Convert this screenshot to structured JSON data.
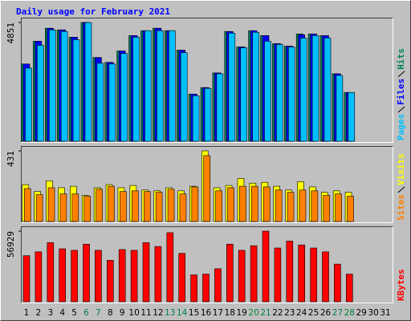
{
  "chart_data": [
    {
      "type": "bar",
      "title": "Daily usage for February 2021",
      "ylim": [
        0,
        4851
      ],
      "yticks": [
        4851
      ],
      "series": [
        {
          "name": "Hits",
          "color": "#00805c",
          "values": [
            3154,
            4084,
            4615,
            4549,
            4250,
            4851,
            3420,
            3221,
            3686,
            4317,
            4516,
            4615,
            4516,
            3719,
            1926,
            2191,
            2789,
            4483,
            3852,
            4516,
            4317,
            3985,
            3885,
            4383,
            4383,
            4317,
            2756,
            1992,
            null,
            null,
            null
          ]
        },
        {
          "name": "Files",
          "color": "#0000ff",
          "values": [
            3154,
            4084,
            4615,
            4549,
            4250,
            4851,
            3420,
            3221,
            3686,
            4317,
            4516,
            4615,
            4516,
            3719,
            1926,
            2191,
            2789,
            4483,
            3852,
            4516,
            4317,
            3985,
            3885,
            4350,
            4383,
            4317,
            2756,
            1992,
            null,
            null,
            null
          ]
        },
        {
          "name": "Pages",
          "color": "#00c0ff",
          "values": [
            2988,
            3918,
            4549,
            4483,
            4150,
            4848,
            3187,
            3154,
            3586,
            4250,
            4516,
            4516,
            4516,
            3619,
            1859,
            2158,
            2756,
            4416,
            3818,
            4449,
            4084,
            3951,
            3851,
            4216,
            4316,
            4216,
            2689,
            1992,
            null,
            null,
            null
          ]
        }
      ]
    },
    {
      "type": "bar",
      "ylim": [
        0,
        431
      ],
      "yticks": [
        431
      ],
      "series": [
        {
          "name": "Visits",
          "color": "#ffff00",
          "values": [
            225,
            183,
            248,
            206,
            215,
            159,
            206,
            225,
            206,
            220,
            192,
            187,
            206,
            187,
            215,
            431,
            206,
            220,
            262,
            234,
            239,
            215,
            192,
            243,
            211,
            178,
            187,
            178,
            null,
            null,
            null
          ]
        },
        {
          "name": "Sites",
          "color": "#ff8000",
          "values": [
            201,
            164,
            206,
            168,
            168,
            154,
            197,
            215,
            183,
            187,
            183,
            178,
            197,
            168,
            211,
            402,
            187,
            206,
            215,
            215,
            211,
            192,
            178,
            192,
            187,
            159,
            168,
            154,
            null,
            null,
            null
          ]
        }
      ]
    },
    {
      "type": "bar",
      "ylim": [
        0,
        56929
      ],
      "yticks": [
        56929
      ],
      "categories": [
        "1",
        "2",
        "3",
        "4",
        "5",
        "6",
        "7",
        "8",
        "9",
        "10",
        "11",
        "12",
        "13",
        "14",
        "15",
        "16",
        "17",
        "18",
        "19",
        "20",
        "21",
        "22",
        "23",
        "24",
        "25",
        "26",
        "27",
        "28",
        "29",
        "30",
        "31"
      ],
      "highlighted_categories": [
        5,
        6,
        12,
        13,
        19,
        20,
        26,
        27
      ],
      "highlight_color": "#008040",
      "category_color": "#000000",
      "series": [
        {
          "name": "KBytes",
          "color": "#ff0000",
          "values": [
            37128,
            40222,
            47648,
            42697,
            41460,
            46410,
            41460,
            33415,
            42078,
            41460,
            47648,
            44554,
            55692,
            38984,
            21658,
            22277,
            26608,
            46410,
            41460,
            45172,
            56929,
            43316,
            48885,
            45791,
            43316,
            40222,
            30321,
            22277,
            null,
            null,
            null
          ]
        }
      ]
    }
  ]
}
